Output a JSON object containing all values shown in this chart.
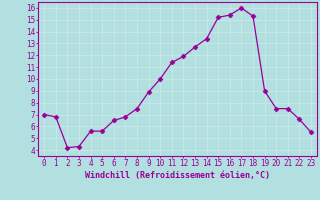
{
  "x": [
    0,
    1,
    2,
    3,
    4,
    5,
    6,
    7,
    8,
    9,
    10,
    11,
    12,
    13,
    14,
    15,
    16,
    17,
    18,
    19,
    20,
    21,
    22,
    23
  ],
  "y": [
    7.0,
    6.8,
    4.2,
    4.3,
    5.6,
    5.6,
    6.5,
    6.8,
    7.5,
    8.9,
    10.0,
    11.4,
    11.9,
    12.7,
    13.4,
    15.2,
    15.4,
    16.0,
    15.3,
    9.0,
    7.5,
    7.5,
    6.6,
    5.5
  ],
  "line_color": "#9b0099",
  "marker": "D",
  "marker_size": 2.5,
  "bg_color": "#b2dfdf",
  "grid_color": "#c8e8e8",
  "xlim": [
    -0.5,
    23.5
  ],
  "ylim": [
    3.5,
    16.5
  ],
  "yticks": [
    4,
    5,
    6,
    7,
    8,
    9,
    10,
    11,
    12,
    13,
    14,
    15,
    16
  ],
  "xticks": [
    0,
    1,
    2,
    3,
    4,
    5,
    6,
    7,
    8,
    9,
    10,
    11,
    12,
    13,
    14,
    15,
    16,
    17,
    18,
    19,
    20,
    21,
    22,
    23
  ],
  "xlabel": "Windchill (Refroidissement éolien,°C)",
  "tick_color": "#9b0099",
  "label_color": "#9b0099",
  "spine_color": "#9b0099",
  "tick_fontsize": 5.5,
  "xlabel_fontsize": 6.0
}
